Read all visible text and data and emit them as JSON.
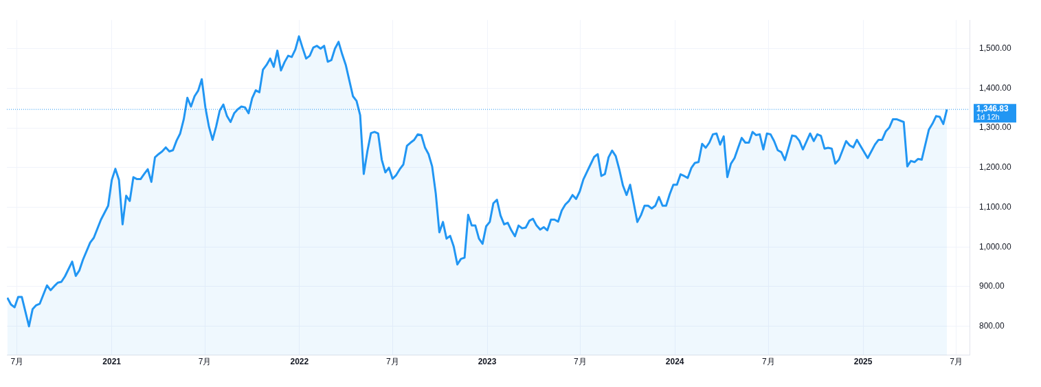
{
  "chart_data": {
    "type": "area",
    "x": [
      "2020-06-12",
      "2020-06-19",
      "2020-06-26",
      "2020-07-03",
      "2020-07-10",
      "2020-07-24",
      "2020-07-31",
      "2020-08-07",
      "2020-08-14",
      "2020-08-28",
      "2020-09-04",
      "2020-09-11",
      "2020-09-18",
      "2020-09-25",
      "2020-10-02",
      "2020-10-16",
      "2020-10-23",
      "2020-10-30",
      "2020-11-06",
      "2020-11-20",
      "2020-11-27",
      "2020-12-11",
      "2020-12-25",
      "2021-01-01",
      "2021-01-08",
      "2021-01-15",
      "2021-01-22",
      "2021-01-29",
      "2021-02-05",
      "2021-02-12",
      "2021-02-19",
      "2021-02-26",
      "2021-03-05",
      "2021-03-12",
      "2021-03-19",
      "2021-03-26",
      "2021-04-02",
      "2021-04-09",
      "2021-04-16",
      "2021-04-23",
      "2021-04-30",
      "2021-05-07",
      "2021-05-14",
      "2021-05-21",
      "2021-05-28",
      "2021-06-04",
      "2021-06-11",
      "2021-06-18",
      "2021-06-25",
      "2021-07-02",
      "2021-07-09",
      "2021-07-16",
      "2021-07-23",
      "2021-07-30",
      "2021-08-06",
      "2021-08-13",
      "2021-08-20",
      "2021-08-27",
      "2021-09-03",
      "2021-09-10",
      "2021-09-17",
      "2021-09-24",
      "2021-10-01",
      "2021-10-08",
      "2021-10-15",
      "2021-10-22",
      "2021-10-29",
      "2021-11-05",
      "2021-11-12",
      "2021-11-19",
      "2021-11-26",
      "2021-12-03",
      "2021-12-10",
      "2021-12-17",
      "2021-12-24",
      "2021-12-31",
      "2022-01-07",
      "2022-01-14",
      "2022-01-21",
      "2022-01-28",
      "2022-02-04",
      "2022-02-11",
      "2022-02-18",
      "2022-02-25",
      "2022-03-04",
      "2022-03-11",
      "2022-03-18",
      "2022-03-25",
      "2022-04-01",
      "2022-04-15",
      "2022-04-22",
      "2022-04-29",
      "2022-05-06",
      "2022-05-13",
      "2022-05-20",
      "2022-05-27",
      "2022-06-03",
      "2022-06-10",
      "2022-06-17",
      "2022-06-24",
      "2022-07-01",
      "2022-07-08",
      "2022-07-15",
      "2022-07-22",
      "2022-07-29",
      "2022-08-05",
      "2022-08-12",
      "2022-08-19",
      "2022-08-26",
      "2022-09-02",
      "2022-09-09",
      "2022-09-16",
      "2022-09-23",
      "2022-09-30",
      "2022-10-07",
      "2022-10-14",
      "2022-10-21",
      "2022-10-28",
      "2022-11-04",
      "2022-11-11",
      "2022-11-18",
      "2022-11-25",
      "2022-12-02",
      "2022-12-09",
      "2022-12-16",
      "2022-12-23",
      "2022-12-30",
      "2023-01-06",
      "2023-01-13",
      "2023-01-20",
      "2023-01-27",
      "2023-02-03",
      "2023-02-10",
      "2023-02-17",
      "2023-02-24",
      "2023-03-03",
      "2023-03-10",
      "2023-03-17",
      "2023-03-24",
      "2023-03-31",
      "2023-04-07",
      "2023-04-14",
      "2023-04-21",
      "2023-04-28",
      "2023-05-05",
      "2023-05-12",
      "2023-05-19",
      "2023-05-26",
      "2023-06-02",
      "2023-06-09",
      "2023-06-16",
      "2023-06-23",
      "2023-06-30",
      "2023-07-07",
      "2023-07-14",
      "2023-07-21",
      "2023-07-28",
      "2023-08-04",
      "2023-08-11",
      "2023-08-18",
      "2023-08-25",
      "2023-09-01",
      "2023-09-08",
      "2023-09-15",
      "2023-09-22",
      "2023-09-29",
      "2023-10-06",
      "2023-10-13",
      "2023-10-20",
      "2023-10-27",
      "2023-11-03",
      "2023-11-10",
      "2023-11-17",
      "2023-11-24",
      "2023-12-01",
      "2023-12-08",
      "2023-12-15",
      "2023-12-22",
      "2023-12-29",
      "2024-01-05",
      "2024-01-12",
      "2024-01-19",
      "2024-01-26",
      "2024-02-02",
      "2024-02-09",
      "2024-02-16",
      "2024-02-23",
      "2024-03-01",
      "2024-03-08",
      "2024-03-15",
      "2024-03-22",
      "2024-03-29",
      "2024-04-05",
      "2024-04-12",
      "2024-04-19",
      "2024-04-26",
      "2024-05-03",
      "2024-05-10",
      "2024-05-17",
      "2024-05-24",
      "2024-05-31",
      "2024-06-07",
      "2024-06-14",
      "2024-06-21",
      "2024-06-28",
      "2024-07-05",
      "2024-07-12",
      "2024-07-19",
      "2024-07-26",
      "2024-08-02",
      "2024-08-16",
      "2024-08-23",
      "2024-08-30",
      "2024-09-06",
      "2024-09-20",
      "2024-09-27",
      "2024-10-04",
      "2024-10-11",
      "2024-10-18",
      "2024-10-25",
      "2024-11-01",
      "2024-11-08",
      "2024-11-15",
      "2024-11-29",
      "2024-12-06",
      "2024-12-13",
      "2024-12-20",
      "2025-01-10",
      "2025-01-24",
      "2025-01-31",
      "2025-02-07",
      "2025-02-14",
      "2025-02-21",
      "2025-02-28",
      "2025-03-07",
      "2025-03-21",
      "2025-03-28",
      "2025-04-04",
      "2025-04-11",
      "2025-04-18",
      "2025-04-25",
      "2025-05-09",
      "2025-05-16",
      "2025-05-23",
      "2025-05-30",
      "2025-06-06",
      "2025-06-13"
    ],
    "series": [
      {
        "color": "#2196f3",
        "values": [
          872,
          855,
          848,
          874,
          874,
          800,
          843,
          853,
          857,
          903,
          891,
          901,
          910,
          912,
          926,
          963,
          927,
          941,
          968,
          1011,
          1023,
          1069,
          1104,
          1169,
          1197,
          1169,
          1057,
          1129,
          1116,
          1176,
          1171,
          1171,
          1184,
          1196,
          1164,
          1226,
          1234,
          1241,
          1251,
          1241,
          1244,
          1268,
          1286,
          1322,
          1376,
          1354,
          1380,
          1394,
          1423,
          1352,
          1303,
          1270,
          1304,
          1344,
          1359,
          1330,
          1315,
          1337,
          1347,
          1354,
          1352,
          1337,
          1375,
          1395,
          1390,
          1447,
          1459,
          1475,
          1454,
          1495,
          1445,
          1466,
          1482,
          1479,
          1498,
          1531,
          1502,
          1475,
          1482,
          1503,
          1507,
          1500,
          1507,
          1467,
          1471,
          1500,
          1517,
          1486,
          1459,
          1380,
          1368,
          1332,
          1184,
          1241,
          1287,
          1290,
          1286,
          1220,
          1188,
          1200,
          1172,
          1181,
          1196,
          1208,
          1255,
          1263,
          1270,
          1284,
          1282,
          1251,
          1234,
          1203,
          1135,
          1037,
          1063,
          1021,
          1028,
          1001,
          956,
          970,
          973,
          1081,
          1054,
          1054,
          1021,
          1008,
          1052,
          1063,
          1110,
          1119,
          1079,
          1057,
          1061,
          1042,
          1027,
          1054,
          1047,
          1049,
          1066,
          1071,
          1054,
          1044,
          1050,
          1042,
          1069,
          1069,
          1064,
          1092,
          1107,
          1116,
          1131,
          1121,
          1140,
          1170,
          1189,
          1208,
          1227,
          1234,
          1179,
          1184,
          1226,
          1243,
          1229,
          1195,
          1155,
          1131,
          1157,
          1110,
          1063,
          1080,
          1104,
          1104,
          1097,
          1104,
          1126,
          1104,
          1104,
          1133,
          1157,
          1157,
          1183,
          1179,
          1174,
          1199,
          1212,
          1214,
          1260,
          1250,
          1263,
          1284,
          1286,
          1258,
          1279,
          1176,
          1210,
          1224,
          1250,
          1275,
          1263,
          1263,
          1290,
          1282,
          1284,
          1246,
          1286,
          1284,
          1267,
          1244,
          1239,
          1219,
          1281,
          1279,
          1268,
          1246,
          1286,
          1267,
          1284,
          1280,
          1248,
          1250,
          1248,
          1210,
          1220,
          1267,
          1256,
          1251,
          1270,
          1224,
          1258,
          1270,
          1270,
          1291,
          1301,
          1322,
          1322,
          1315,
          1203,
          1217,
          1214,
          1222,
          1220,
          1296,
          1311,
          1330,
          1328,
          1310,
          1347
        ]
      }
    ],
    "xlim": [
      "2020-06-11",
      "2025-07-27"
    ],
    "xticks": [
      {
        "value": "2020-07-01",
        "label": "7月"
      },
      {
        "value": "2021-01-01",
        "label": "2021"
      },
      {
        "value": "2021-07-01",
        "label": "7月"
      },
      {
        "value": "2022-01-01",
        "label": "2022"
      },
      {
        "value": "2022-07-01",
        "label": "7月"
      },
      {
        "value": "2023-01-01",
        "label": "2023"
      },
      {
        "value": "2023-07-01",
        "label": "7月"
      },
      {
        "value": "2024-01-01",
        "label": "2024"
      },
      {
        "value": "2024-07-01",
        "label": "7月"
      },
      {
        "value": "2025-01-01",
        "label": "2025"
      },
      {
        "value": "2025-07-01",
        "label": "7月"
      }
    ],
    "ylim": [
      727,
      1572
    ],
    "yticks": [
      {
        "value": 800,
        "label": "800.00"
      },
      {
        "value": 900,
        "label": "900.00"
      },
      {
        "value": 1000,
        "label": "1,000.00"
      },
      {
        "value": 1100,
        "label": "1,100.00"
      },
      {
        "value": 1200,
        "label": "1,200.00"
      },
      {
        "value": 1300,
        "label": "1,300.00"
      },
      {
        "value": 1400,
        "label": "1,400.00"
      },
      {
        "value": 1500,
        "label": "1,500.00"
      }
    ],
    "ref_lines": [
      {
        "axis": "y",
        "value": 1346.83,
        "label": "1,346.83",
        "color": "#2196f3",
        "line_style": "dotted"
      }
    ],
    "annotations": [
      "1d 12h"
    ],
    "grid": true,
    "legend": false,
    "marker": "none",
    "line_style": "solid"
  }
}
